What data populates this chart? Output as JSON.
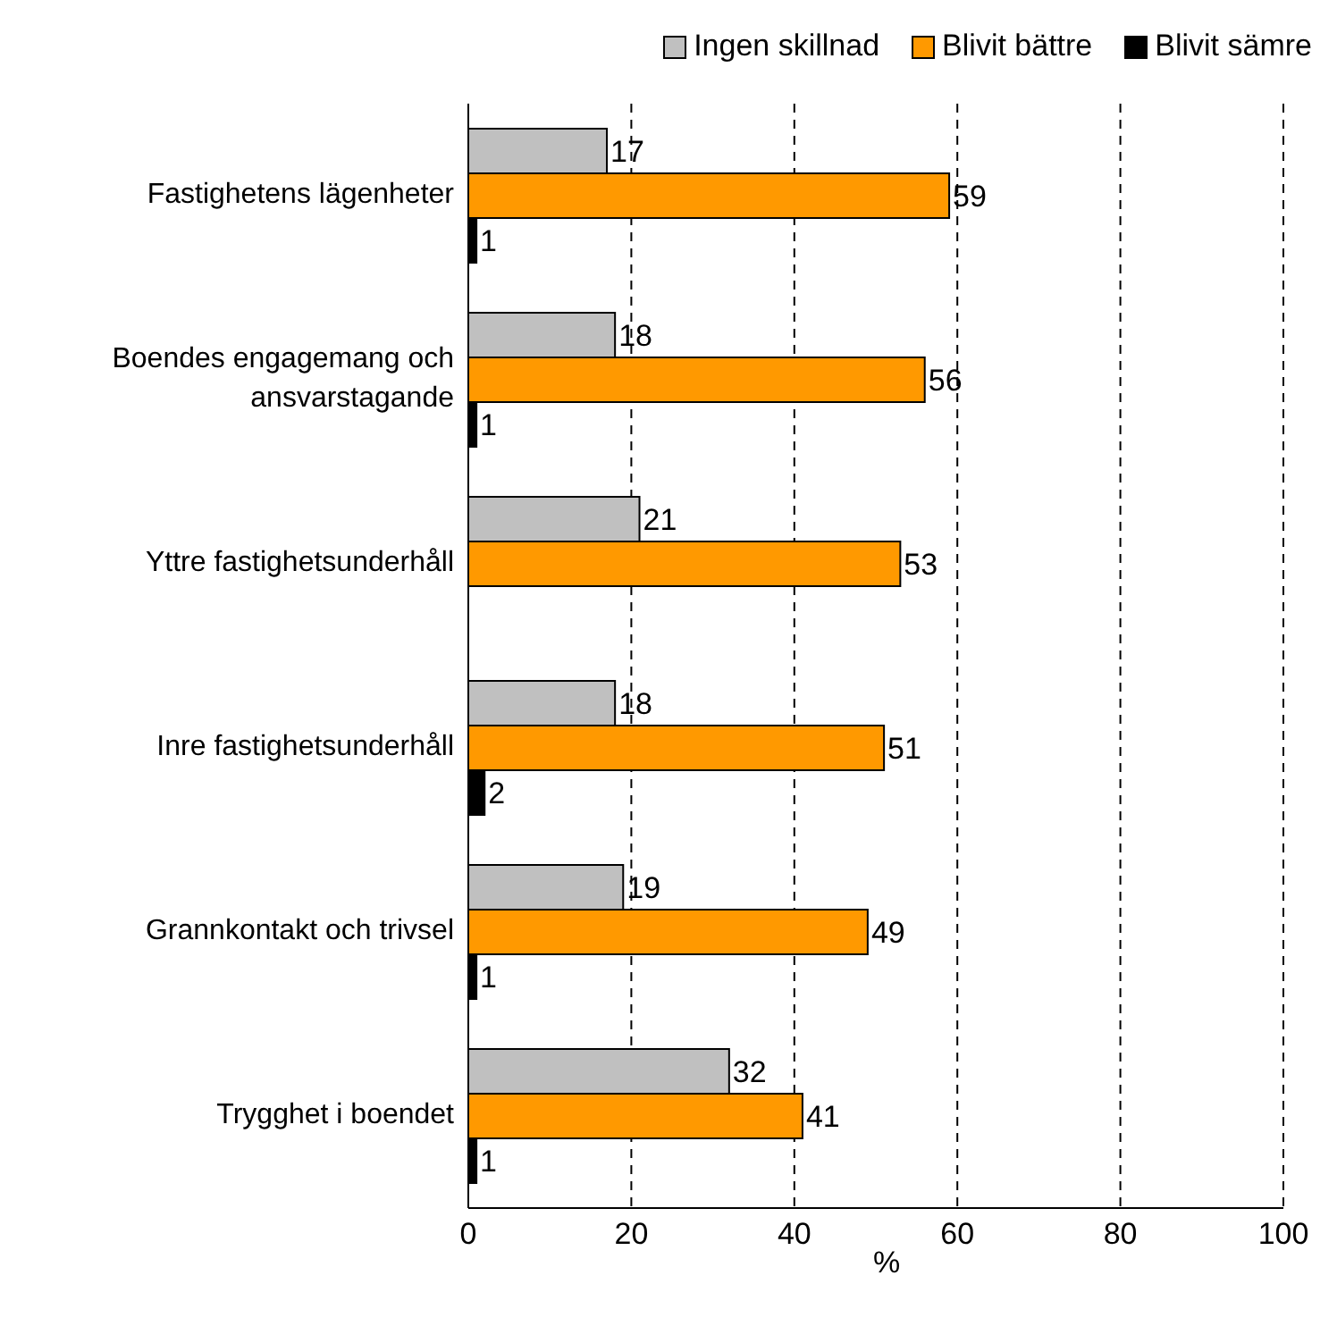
{
  "chart_data": {
    "type": "bar",
    "orientation": "horizontal",
    "xlabel": "%",
    "categories": [
      "Fastighetens lägenheter",
      "Boendes engagemang och ansvarstagande",
      "Yttre fastighetsunderhåll",
      "Inre fastighetsunderhåll",
      "Grannkontakt och trivsel",
      "Trygghet i boendet"
    ],
    "series": [
      {
        "name": "Ingen skillnad",
        "color": "#c0c0c0",
        "values": [
          17,
          18,
          21,
          18,
          19,
          32
        ]
      },
      {
        "name": "Blivit bättre",
        "color": "#ff9900",
        "values": [
          59,
          56,
          53,
          51,
          49,
          41
        ]
      },
      {
        "name": "Blivit sämre",
        "color": "#000000",
        "values": [
          1,
          1,
          null,
          2,
          1,
          1
        ]
      }
    ],
    "xlim": [
      0,
      100
    ],
    "xticks": [
      0,
      20,
      40,
      60,
      80,
      100
    ],
    "grid": "x",
    "legend": "top right",
    "data_labels": true
  }
}
